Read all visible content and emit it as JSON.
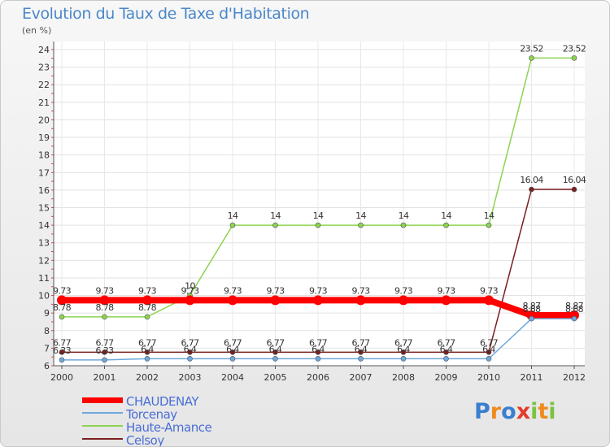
{
  "header": {
    "title": "Evolution du Taux de Taxe d'Habitation",
    "subtitle": "(en %)"
  },
  "logo": {
    "letters": [
      {
        "ch": "P",
        "color": "#3a7fd0"
      },
      {
        "ch": "r",
        "color": "#f08a1c"
      },
      {
        "ch": "o",
        "color": "#3a7fd0"
      },
      {
        "ch": "x",
        "color": "#e23b2e"
      },
      {
        "ch": "i",
        "color": "#7cc242"
      },
      {
        "ch": "t",
        "color": "#f08a1c"
      },
      {
        "ch": "i",
        "color": "#7cc242"
      }
    ]
  },
  "chart_data": {
    "type": "line",
    "title": "Evolution du Taux de Taxe d'Habitation",
    "subtitle": "(en %)",
    "xlabel": "",
    "ylabel": "",
    "categories": [
      "2000",
      "2001",
      "2002",
      "2003",
      "2004",
      "2005",
      "2006",
      "2007",
      "2008",
      "2009",
      "2010",
      "2011",
      "2012"
    ],
    "ylim": [
      6,
      24
    ],
    "yticks": [
      6,
      7,
      8,
      9,
      10,
      11,
      12,
      13,
      14,
      15,
      16,
      17,
      18,
      19,
      20,
      21,
      22,
      23,
      24
    ],
    "grid": true,
    "legend_position": "bottom-left",
    "series": [
      {
        "name": "CHAUDENAY",
        "color": "#ff0000",
        "values": [
          9.73,
          9.73,
          9.73,
          9.73,
          9.73,
          9.73,
          9.73,
          9.73,
          9.73,
          9.73,
          9.73,
          8.87,
          8.87
        ],
        "labels": [
          "9.73",
          "9.73",
          "9.73",
          "9.73",
          "9.73",
          "9.73",
          "9.73",
          "9.73",
          "9.73",
          "9.73",
          "9.73",
          "8.87",
          "8.87"
        ]
      },
      {
        "name": "Torcenay",
        "color": "#6fa8dc",
        "values": [
          6.33,
          6.33,
          6.4,
          6.4,
          6.4,
          6.4,
          6.4,
          6.4,
          6.4,
          6.4,
          6.4,
          8.68,
          8.68
        ],
        "labels": [
          "6.33",
          "6.33",
          "6.4",
          "6.4",
          "6.4",
          "6.4",
          "6.4",
          "6.4",
          "6.4",
          "6.4",
          "6.4",
          "8.68",
          "8.68"
        ]
      },
      {
        "name": "Haute-Amance",
        "color": "#8cd450",
        "values": [
          8.78,
          8.78,
          8.78,
          10,
          14,
          14,
          14,
          14,
          14,
          14,
          14,
          23.52,
          23.52
        ],
        "labels": [
          "8.78",
          "8.78",
          "8.78",
          "10",
          "14",
          "14",
          "14",
          "14",
          "14",
          "14",
          "14",
          "23.52",
          "23.52"
        ]
      },
      {
        "name": "Celsoy",
        "color": "#7a1f1f",
        "values": [
          6.77,
          6.77,
          6.77,
          6.77,
          6.77,
          6.77,
          6.77,
          6.77,
          6.77,
          6.77,
          6.77,
          16.04,
          16.04
        ],
        "labels": [
          "6.77",
          "6.77",
          "6.77",
          "6.77",
          "6.77",
          "6.77",
          "6.77",
          "6.77",
          "6.77",
          "6.77",
          "6.77",
          "16.04",
          "16.04"
        ]
      }
    ]
  }
}
